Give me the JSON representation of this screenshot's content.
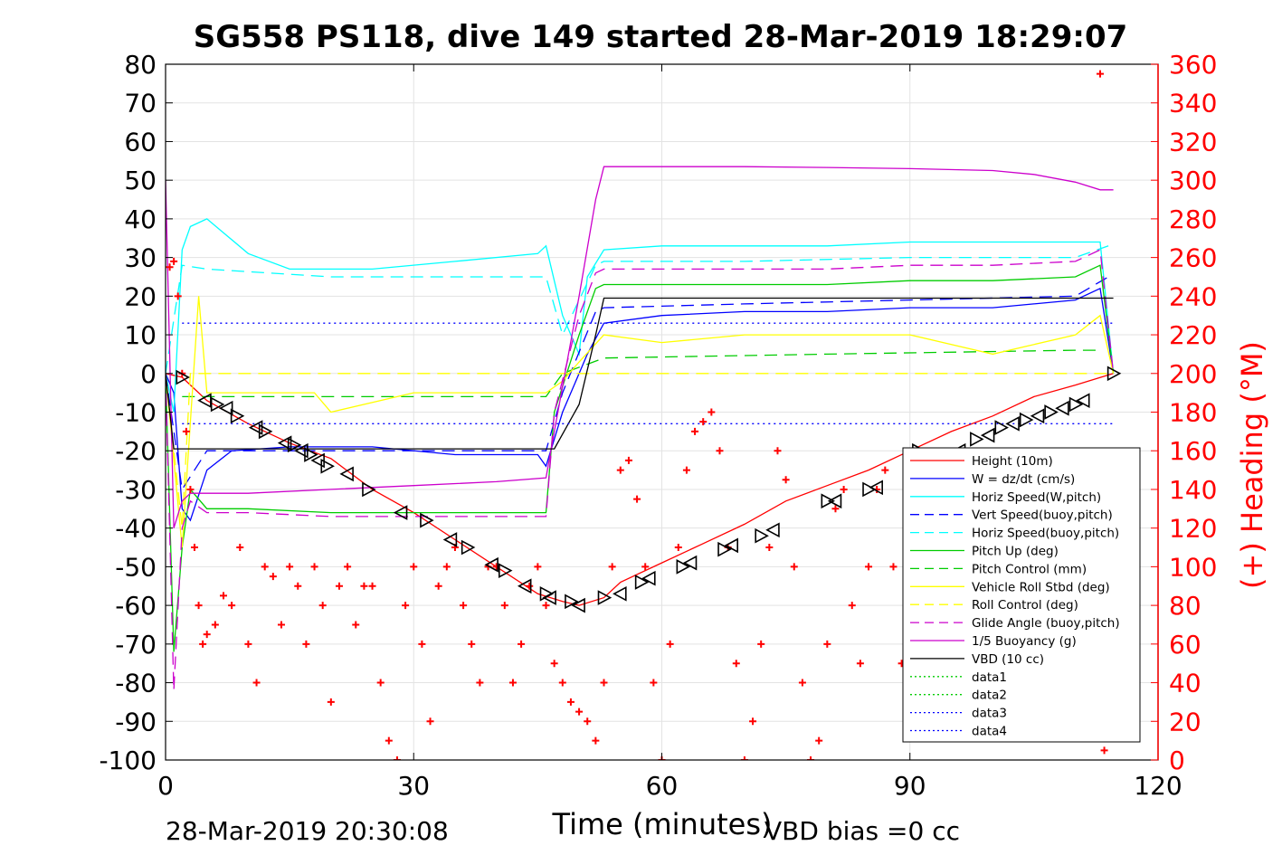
{
  "chart_data": {
    "type": "line",
    "title": "SG558 PS118, dive 149 started 28-Mar-2019 18:29:07",
    "xlabel": "Time (minutes)",
    "ylabel_right": "(+) Heading (°M)",
    "xlim": [
      0,
      120
    ],
    "ylim": [
      -100,
      80
    ],
    "ylim_right": [
      0,
      360
    ],
    "x_ticks": [
      "0",
      "30",
      "60",
      "90",
      "120"
    ],
    "y_ticks": [
      "-100",
      "-90",
      "-80",
      "-70",
      "-60",
      "-50",
      "-40",
      "-30",
      "-20",
      "-10",
      "0",
      "10",
      "20",
      "30",
      "40",
      "50",
      "60",
      "70",
      "80"
    ],
    "y_ticks_right": [
      "0",
      "20",
      "40",
      "60",
      "80",
      "100",
      "120",
      "140",
      "160",
      "180",
      "200",
      "220",
      "240",
      "260",
      "280",
      "300",
      "320",
      "340",
      "360"
    ],
    "footer_left": "28-Mar-2019 20:30:08",
    "footer_right": "VBD bias =0 cc",
    "legend_position": "lower-right",
    "series": [
      {
        "name": "Height (10m)",
        "color": "#ff0000",
        "style": "solid",
        "x": [
          0,
          2,
          5,
          10,
          15,
          20,
          25,
          30,
          35,
          40,
          45,
          48,
          50,
          53,
          55,
          60,
          65,
          70,
          75,
          80,
          85,
          90,
          95,
          100,
          105,
          110,
          114.6
        ],
        "y": [
          0,
          -1,
          -7,
          -13,
          -18,
          -22,
          -30,
          -36,
          -43,
          -50,
          -57,
          -59,
          -60,
          -58,
          -54,
          -49,
          -44,
          -39,
          -33,
          -29,
          -25,
          -20,
          -15,
          -11,
          -6,
          -3,
          0
        ]
      },
      {
        "name": "W = dz/dt (cm/s)",
        "color": "#0000ff",
        "style": "solid",
        "x": [
          0,
          1,
          2,
          3,
          5,
          8,
          15,
          25,
          35,
          45,
          46,
          48,
          50,
          51,
          53,
          60,
          70,
          80,
          90,
          100,
          110,
          113,
          114.6
        ],
        "y": [
          0,
          -5,
          -35,
          -38,
          -25,
          -20,
          -19,
          -19,
          -21,
          -21,
          -24,
          -10,
          0,
          5,
          13,
          15,
          16,
          16,
          17,
          17,
          19,
          22,
          0
        ]
      },
      {
        "name": "Horiz Speed(W,pitch)",
        "color": "#00ffff",
        "style": "solid",
        "x": [
          0,
          1,
          2,
          3,
          5,
          10,
          15,
          25,
          35,
          45,
          46,
          48,
          50,
          51,
          53,
          60,
          70,
          80,
          90,
          100,
          110,
          113,
          114.6
        ],
        "y": [
          0,
          -10,
          32,
          38,
          40,
          31,
          27,
          27,
          29,
          31,
          33,
          15,
          5,
          25,
          32,
          33,
          33,
          33,
          34,
          34,
          34,
          34,
          0
        ]
      },
      {
        "name": "Vert Speed(buoy,pitch)",
        "color": "#0000ff",
        "style": "dashed",
        "x": [
          0,
          2,
          5,
          20,
          46,
          48,
          52,
          53,
          70,
          90,
          110,
          114
        ],
        "y": [
          0,
          -30,
          -20,
          -20,
          -20,
          -5,
          16,
          17,
          18,
          19,
          20,
          25
        ]
      },
      {
        "name": "Horiz Speed(buoy,pitch)",
        "color": "#00ffff",
        "style": "dashed",
        "x": [
          0,
          2,
          5,
          20,
          46,
          48,
          52,
          53,
          70,
          90,
          110,
          114
        ],
        "y": [
          0,
          28,
          27,
          25,
          25,
          10,
          28,
          29,
          29,
          30,
          30,
          33
        ]
      },
      {
        "name": "Pitch Up (deg)",
        "color": "#00cc00",
        "style": "solid",
        "x": [
          0,
          1,
          2,
          3,
          5,
          10,
          20,
          30,
          40,
          46,
          47,
          50,
          52,
          53,
          60,
          70,
          80,
          90,
          100,
          110,
          113,
          114.6
        ],
        "y": [
          0,
          -72,
          -45,
          -30,
          -35,
          -35,
          -36,
          -36,
          -36,
          -36,
          -10,
          10,
          22,
          23,
          23,
          23,
          23,
          24,
          24,
          25,
          28,
          0
        ]
      },
      {
        "name": "Pitch Control (mm)",
        "color": "#00cc00",
        "style": "dashed",
        "x": [
          2,
          25,
          46,
          48,
          53,
          80,
          110,
          113
        ],
        "y": [
          -6,
          -6,
          -6,
          0,
          4,
          5,
          6,
          6
        ]
      },
      {
        "name": "Vehicle Roll Stbd (deg)",
        "color": "#ffff00",
        "style": "solid",
        "x": [
          0,
          2,
          4,
          5,
          10,
          18,
          20,
          30,
          40,
          46,
          48,
          50,
          53,
          60,
          70,
          80,
          90,
          100,
          110,
          113,
          114.6
        ],
        "y": [
          0,
          -45,
          20,
          -5,
          -5,
          -5,
          -10,
          -5,
          -5,
          -5,
          -2,
          3,
          10,
          8,
          10,
          10,
          10,
          5,
          10,
          15,
          0
        ]
      },
      {
        "name": "Roll Control (deg)",
        "color": "#ffff00",
        "style": "dashed",
        "x": [
          0,
          2,
          3,
          5,
          20,
          46,
          48,
          50,
          53,
          80,
          114
        ],
        "y": [
          0,
          -40,
          0,
          0,
          0,
          0,
          0,
          0,
          0,
          0,
          0
        ]
      },
      {
        "name": "Glide Angle (buoy,pitch)",
        "color": "#cc00cc",
        "style": "dashed",
        "x": [
          0,
          1,
          2,
          3,
          5,
          10,
          20,
          30,
          40,
          46,
          47,
          50,
          52,
          53,
          60,
          70,
          80,
          90,
          100,
          110,
          113,
          114.6
        ],
        "y": [
          0,
          -82,
          -40,
          -33,
          -36,
          -36,
          -37,
          -37,
          -37,
          -37,
          -10,
          15,
          26,
          27,
          27,
          27,
          27,
          28,
          28,
          29,
          32,
          0
        ]
      },
      {
        "name": "1/5 Buoyancy (g)",
        "color": "#cc00cc",
        "style": "solid",
        "x": [
          0,
          1,
          2,
          3,
          5,
          10,
          20,
          30,
          40,
          46,
          47,
          50,
          52,
          53,
          60,
          70,
          80,
          90,
          100,
          105,
          110,
          113,
          114.6
        ],
        "y": [
          50,
          -40,
          -33,
          -31,
          -31,
          -31,
          -30,
          -29,
          -28,
          -27,
          -15,
          20,
          45,
          53.5,
          53.5,
          53.5,
          53.3,
          53,
          52.5,
          51.5,
          49.5,
          47.5,
          47.5
        ]
      },
      {
        "name": "VBD (10 cc)",
        "color": "#000000",
        "style": "solid",
        "x": [
          0,
          1,
          2,
          3,
          46,
          47,
          50,
          52,
          53,
          60,
          80,
          100,
          114.6
        ],
        "y": [
          0,
          -19.5,
          -19.5,
          -19.5,
          -19.5,
          -19.5,
          -8,
          10,
          19.5,
          19.5,
          19.5,
          19.5,
          19.5
        ]
      },
      {
        "name": "data1",
        "color": "#00cc00",
        "style": "dotted",
        "x": [],
        "y": []
      },
      {
        "name": "data2",
        "color": "#00cc00",
        "style": "dotted",
        "x": [],
        "y": []
      },
      {
        "name": "data3",
        "color": "#0000ff",
        "style": "dotted",
        "x": [
          2,
          114.6
        ],
        "y": [
          13,
          13
        ]
      },
      {
        "name": "data4",
        "color": "#0000ff",
        "style": "dotted",
        "x": [
          2,
          114.6
        ],
        "y": [
          -13,
          -13
        ]
      }
    ],
    "heading_series": {
      "color": "#ff0000",
      "marker": "+",
      "axis": "right",
      "x": [
        0.5,
        1,
        1.5,
        2,
        2.5,
        3,
        3.5,
        4,
        4.5,
        5,
        6,
        7,
        8,
        9,
        10,
        11,
        12,
        13,
        14,
        15,
        16,
        17,
        18,
        19,
        20,
        21,
        22,
        23,
        24,
        25,
        26,
        27,
        28,
        29,
        30,
        31,
        32,
        33,
        34,
        35,
        36,
        37,
        38,
        39,
        40,
        41,
        42,
        43,
        44,
        45,
        46,
        47,
        48,
        49,
        50,
        51,
        52,
        53,
        54,
        55,
        56,
        57,
        58,
        59,
        60,
        61,
        62,
        63,
        64,
        65,
        66,
        67,
        68,
        69,
        70,
        71,
        72,
        73,
        74,
        75,
        76,
        77,
        78,
        79,
        80,
        81,
        82,
        83,
        84,
        85,
        86,
        87,
        88,
        89,
        90,
        113,
        113.5
      ],
      "y": [
        255,
        258,
        240,
        200,
        170,
        140,
        110,
        80,
        60,
        65,
        70,
        85,
        80,
        110,
        60,
        40,
        100,
        95,
        70,
        100,
        90,
        60,
        100,
        80,
        30,
        90,
        100,
        70,
        90,
        90,
        40,
        10,
        0,
        80,
        100,
        60,
        20,
        90,
        100,
        110,
        80,
        60,
        40,
        100,
        100,
        80,
        40,
        60,
        90,
        100,
        80,
        50,
        40,
        30,
        25,
        20,
        10,
        40,
        100,
        150,
        155,
        135,
        100,
        40,
        0,
        60,
        110,
        150,
        170,
        175,
        180,
        160,
        110,
        50,
        0,
        20,
        60,
        110,
        160,
        145,
        100,
        40,
        0,
        10,
        60,
        130,
        140,
        80,
        50,
        100,
        140,
        150,
        100,
        50,
        20,
        355,
        5
      ]
    },
    "markers": {
      "type": "triangle",
      "color": "#000000",
      "x": [
        2,
        4.8,
        6.2,
        7.4,
        8.6,
        11,
        12,
        14.5,
        15.5,
        16.5,
        17.5,
        18.5,
        19.5,
        22,
        24.5,
        28.5,
        31.5,
        34.5,
        36.5,
        39.5,
        41,
        43.5,
        46,
        46.5,
        49,
        50,
        53,
        55,
        57.5,
        58.5,
        62.5,
        63.5,
        67.5,
        68.5,
        72,
        73.5,
        80,
        81,
        85,
        86,
        91,
        96,
        98,
        99.5,
        101,
        102.5,
        104,
        105.5,
        107,
        108.5,
        110,
        111,
        114.6
      ],
      "y": [
        -1,
        -7,
        -8,
        -9,
        -11,
        -14,
        -15,
        -18,
        -18.5,
        -20,
        -21,
        -22.5,
        -24,
        -26,
        -30,
        -36,
        -38,
        -43,
        -45,
        -49.5,
        -51,
        -55,
        -57,
        -58,
        -59,
        -60,
        -58,
        -57,
        -54,
        -53,
        -50,
        -49,
        -45.5,
        -44.5,
        -42,
        -40.5,
        -33,
        -33,
        -30,
        -29.5,
        -20,
        -20,
        -17,
        -16,
        -14,
        -13,
        -12,
        -11,
        -10,
        -9,
        -8,
        -7,
        0
      ]
    }
  }
}
